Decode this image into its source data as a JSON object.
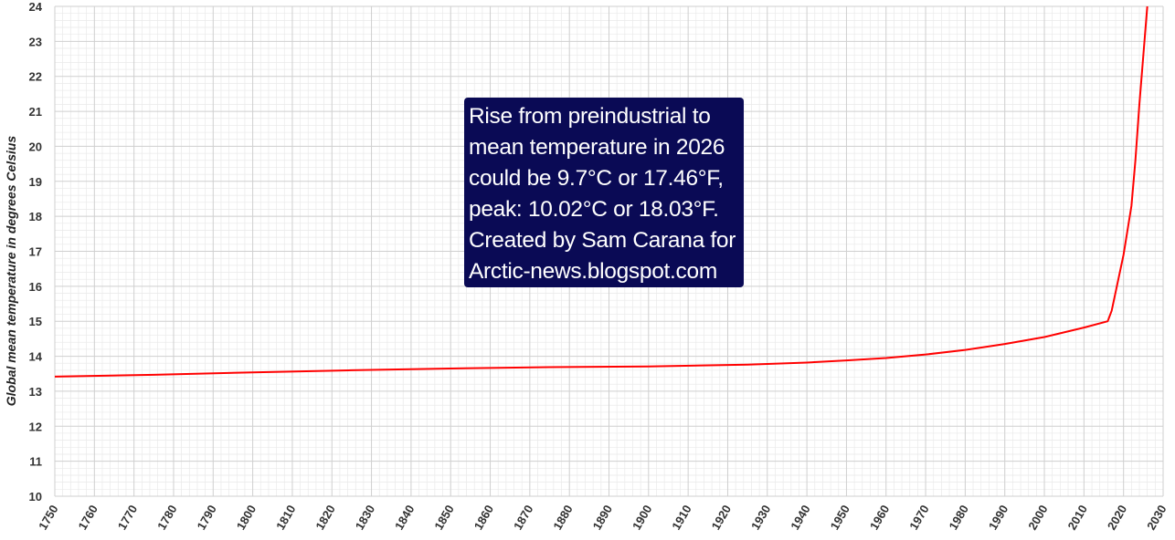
{
  "chart_data": {
    "type": "line",
    "title": "",
    "xlabel": "",
    "ylabel": "Global mean temperature in degrees Celsius",
    "xlim": [
      1750,
      2030
    ],
    "ylim": [
      10,
      24
    ],
    "x_ticks": [
      1750,
      1760,
      1770,
      1780,
      1790,
      1800,
      1810,
      1820,
      1830,
      1840,
      1850,
      1860,
      1870,
      1880,
      1890,
      1900,
      1910,
      1920,
      1930,
      1940,
      1950,
      1960,
      1970,
      1980,
      1990,
      2000,
      2010,
      2020,
      2030
    ],
    "y_ticks": [
      10,
      11,
      12,
      13,
      14,
      15,
      16,
      17,
      18,
      19,
      20,
      21,
      22,
      23,
      24
    ],
    "grid": true,
    "series": [
      {
        "color": "#ff0000",
        "points": [
          [
            1750,
            13.42
          ],
          [
            1775,
            13.47
          ],
          [
            1800,
            13.54
          ],
          [
            1825,
            13.6
          ],
          [
            1850,
            13.65
          ],
          [
            1875,
            13.69
          ],
          [
            1900,
            13.71
          ],
          [
            1925,
            13.76
          ],
          [
            1940,
            13.82
          ],
          [
            1950,
            13.88
          ],
          [
            1960,
            13.95
          ],
          [
            1970,
            14.05
          ],
          [
            1980,
            14.18
          ],
          [
            1990,
            14.35
          ],
          [
            2000,
            14.55
          ],
          [
            2010,
            14.82
          ],
          [
            2016,
            15.0
          ],
          [
            2017,
            15.3
          ],
          [
            2020,
            16.9
          ],
          [
            2022,
            18.3
          ],
          [
            2023,
            19.6
          ],
          [
            2024,
            21.2
          ],
          [
            2025,
            22.6
          ],
          [
            2026,
            24.0
          ]
        ]
      }
    ],
    "annotation": {
      "lines": [
        "Rise from preindustrial to",
        "mean temperature in 2026",
        "could be 9.7°C or 17.46°F,",
        "peak: 10.02°C or 18.03°F.",
        "Created by Sam Carana for",
        "Arctic-news.blogspot.com"
      ],
      "background": "#0a0a55",
      "color": "#ffffff"
    }
  }
}
